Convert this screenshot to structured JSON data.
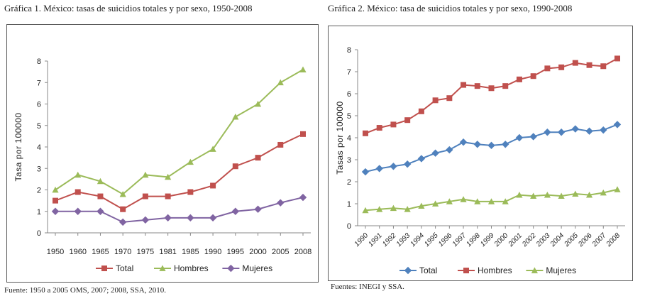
{
  "chart_data": [
    {
      "type": "line",
      "title": "Gráfica 1. México: tasas de suicidios totales y por sexo, 1950-2008",
      "ylabel": "Tasa por 100000",
      "xlabel": "",
      "ylim": [
        0,
        8
      ],
      "yticks": [
        "0",
        "1",
        "2",
        "3",
        "4",
        "5",
        "6",
        "7",
        "8"
      ],
      "categories": [
        "1950",
        "1960",
        "1965",
        "1970",
        "1975",
        "1981",
        "1985",
        "1990",
        "1995",
        "2000",
        "2005",
        "2008"
      ],
      "series": [
        {
          "name": "Total",
          "color": "#c0504d",
          "marker": "square",
          "values": [
            1.5,
            1.9,
            1.7,
            1.1,
            1.7,
            1.7,
            1.9,
            2.2,
            3.1,
            3.5,
            4.1,
            4.6
          ]
        },
        {
          "name": "Hombres",
          "color": "#9bbb59",
          "marker": "triangle",
          "values": [
            2.0,
            2.7,
            2.4,
            1.8,
            2.7,
            2.6,
            3.3,
            3.9,
            5.4,
            6.0,
            7.0,
            7.6
          ]
        },
        {
          "name": "Mujeres",
          "color": "#8064a2",
          "marker": "diamond",
          "values": [
            1.0,
            1.0,
            1.0,
            0.5,
            0.6,
            0.7,
            0.7,
            0.7,
            1.0,
            1.1,
            1.4,
            1.65
          ]
        }
      ],
      "grid": false,
      "legend": "bottom",
      "source": "Fuente: 1950 a 2005 OMS, 2007; 2008, SSA, 2010."
    },
    {
      "type": "line",
      "title": "Gráfica 2. México: tasa de suicidios totales y por sexo, 1990-2008",
      "ylabel": "Tasas por 100000",
      "xlabel": "",
      "ylim": [
        0,
        8
      ],
      "yticks": [
        "0",
        "1",
        "2",
        "3",
        "4",
        "5",
        "6",
        "7",
        "8"
      ],
      "categories": [
        "1990",
        "1991",
        "1992",
        "1993",
        "1994",
        "1995",
        "1996",
        "1997",
        "1998",
        "1999",
        "2000",
        "2001",
        "2002",
        "2003",
        "2004",
        "2005",
        "2006",
        "2007",
        "2008"
      ],
      "series": [
        {
          "name": "Total",
          "color": "#4f81bd",
          "marker": "diamond",
          "values": [
            2.45,
            2.6,
            2.7,
            2.8,
            3.05,
            3.3,
            3.45,
            3.8,
            3.7,
            3.65,
            3.7,
            4.0,
            4.05,
            4.25,
            4.25,
            4.4,
            4.3,
            4.35,
            4.6
          ]
        },
        {
          "name": "Hombres",
          "color": "#c0504d",
          "marker": "square",
          "values": [
            4.2,
            4.45,
            4.6,
            4.8,
            5.2,
            5.7,
            5.8,
            6.4,
            6.35,
            6.25,
            6.35,
            6.65,
            6.8,
            7.15,
            7.2,
            7.4,
            7.3,
            7.25,
            7.6
          ]
        },
        {
          "name": "Mujeres",
          "color": "#9bbb59",
          "marker": "triangle",
          "values": [
            0.7,
            0.75,
            0.8,
            0.75,
            0.9,
            1.0,
            1.1,
            1.2,
            1.1,
            1.1,
            1.1,
            1.4,
            1.35,
            1.4,
            1.35,
            1.45,
            1.4,
            1.5,
            1.65
          ]
        }
      ],
      "grid": false,
      "legend": "bottom",
      "source": "Fuentes: INEGI y SSA."
    }
  ]
}
